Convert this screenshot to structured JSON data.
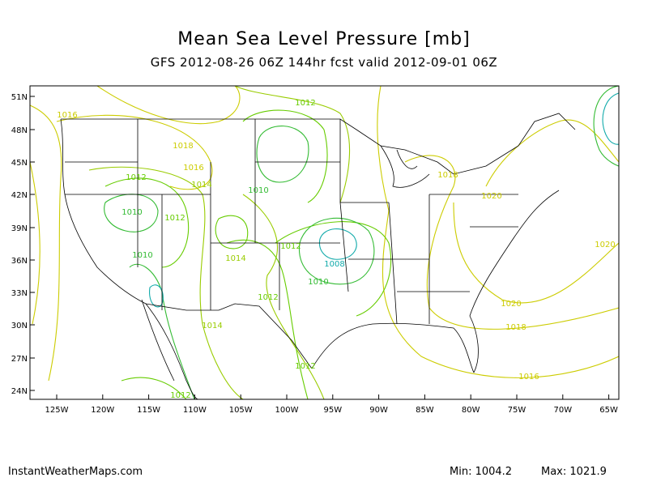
{
  "title": "Mean Sea Level Pressure [mb]",
  "subtitle": "GFS 2012-08-26 06Z 144hr fcst valid 2012-09-01 06Z",
  "footer": {
    "source": "InstantWeatherMaps.com",
    "min_label": "Min:",
    "min_value": "1004.2",
    "max_label": "Max:",
    "max_value": "1021.9"
  },
  "axes": {
    "lat_ticks": [
      "51N",
      "48N",
      "45N",
      "42N",
      "39N",
      "36N",
      "33N",
      "30N",
      "27N",
      "24N"
    ],
    "lon_ticks": [
      "125W",
      "120W",
      "115W",
      "110W",
      "105W",
      "100W",
      "95W",
      "90W",
      "85W",
      "80W",
      "75W",
      "70W",
      "65W"
    ]
  },
  "contour_labels": [
    {
      "text": "1012",
      "color": "#66cc00"
    },
    {
      "text": "1016",
      "color": "#cccc00"
    },
    {
      "text": "1018",
      "color": "#cccc00"
    },
    {
      "text": "1016",
      "color": "#cccc00"
    },
    {
      "text": "1012",
      "color": "#66cc00"
    },
    {
      "text": "1014",
      "color": "#99cc00"
    },
    {
      "text": "1010",
      "color": "#33bb33"
    },
    {
      "text": "1010",
      "color": "#33bb33"
    },
    {
      "text": "1012",
      "color": "#66cc00"
    },
    {
      "text": "1014",
      "color": "#99cc00"
    },
    {
      "text": "1010",
      "color": "#33bb33"
    },
    {
      "text": "1012",
      "color": "#66cc00"
    },
    {
      "text": "1008",
      "color": "#11aaaa"
    },
    {
      "text": "1010",
      "color": "#33bb33"
    },
    {
      "text": "1012",
      "color": "#66cc00"
    },
    {
      "text": "1014",
      "color": "#99cc00"
    },
    {
      "text": "1012",
      "color": "#66cc00"
    },
    {
      "text": "1012",
      "color": "#66cc00"
    },
    {
      "text": "1018",
      "color": "#cccc00"
    },
    {
      "text": "1020",
      "color": "#cccc00"
    },
    {
      "text": "1020",
      "color": "#cccc00"
    },
    {
      "text": "1020",
      "color": "#cccc00"
    },
    {
      "text": "1018",
      "color": "#cccc00"
    },
    {
      "text": "1016",
      "color": "#cccc00"
    }
  ],
  "colors": {
    "contour_1008": "#11aaaa",
    "contour_1010": "#33bb33",
    "contour_1012": "#66cc00",
    "contour_1014": "#99cc00",
    "contour_1016": "#cccc00",
    "contour_1018": "#cccc00",
    "contour_1020": "#cccc00",
    "border": "#000000"
  }
}
